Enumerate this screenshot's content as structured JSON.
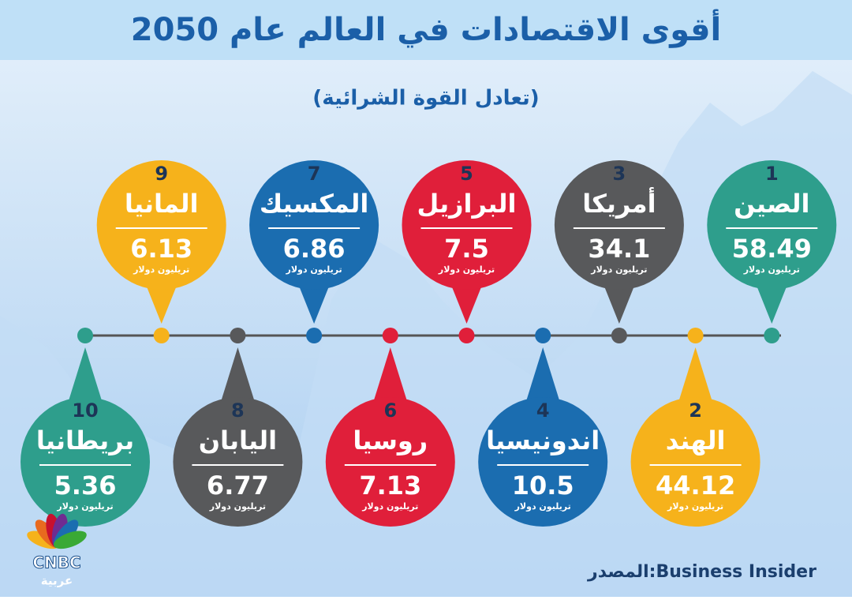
{
  "header": {
    "title": "أقوى الاقتصادات في العالم عام 2050",
    "subtitle": "(تعادل القوة الشرائية)"
  },
  "items": [
    {
      "rank": "1",
      "country": "الصين",
      "value": "58.49",
      "unit": "تريليون دولار",
      "color": "#2e9e8c"
    },
    {
      "rank": "2",
      "country": "الهند",
      "value": "44.12",
      "unit": "تريليون دولار",
      "color": "#f6b21b"
    },
    {
      "rank": "3",
      "country": "أمريكا",
      "value": "34.1",
      "unit": "تريليون دولار",
      "color": "#58595b"
    },
    {
      "rank": "4",
      "country": "اندونيسيا",
      "value": "10.5",
      "unit": "تريليون دولار",
      "color": "#1b6db0"
    },
    {
      "rank": "5",
      "country": "البرازيل",
      "value": "7.5",
      "unit": "تريليون دولار",
      "color": "#e01f3a"
    },
    {
      "rank": "6",
      "country": "روسيا",
      "value": "7.13",
      "unit": "تريليون دولار",
      "color": "#e01f3a"
    },
    {
      "rank": "7",
      "country": "المكسيك",
      "value": "6.86",
      "unit": "تريليون دولار",
      "color": "#1b6db0"
    },
    {
      "rank": "8",
      "country": "اليابان",
      "value": "6.77",
      "unit": "تريليون دولار",
      "color": "#58595b"
    },
    {
      "rank": "9",
      "country": "المانيا",
      "value": "6.13",
      "unit": "تريليون دولار",
      "color": "#f6b21b"
    },
    {
      "rank": "10",
      "country": "بريطانيا",
      "value": "5.36",
      "unit": "تريليون دولار",
      "color": "#2e9e8c"
    }
  ],
  "source": "المصدر:Business Insider",
  "logo": {
    "name": "CNBC",
    "sub": "عربية"
  }
}
